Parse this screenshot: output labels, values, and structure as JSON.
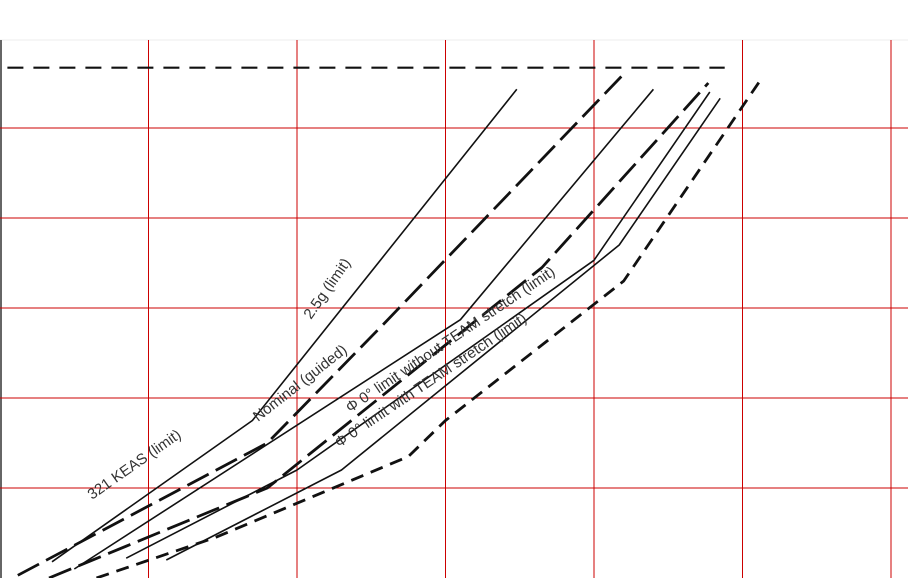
{
  "colors": {
    "grid": "#cc0000",
    "line": "#111111",
    "label": "#333333",
    "background": "#ffffff"
  },
  "chart_data": {
    "type": "line",
    "title": "",
    "xlabel": "",
    "ylabel": "",
    "grid": true,
    "legend": "none",
    "xlim": [
      0,
      6
    ],
    "ylim": [
      0,
      6
    ],
    "x_gridlines": [
      1,
      2,
      3,
      4,
      5,
      6
    ],
    "y_gridlines": [
      1,
      2,
      3,
      4,
      5
    ],
    "bounds": [
      {
        "style": "dashed",
        "values": [
          [
            0.05,
            5.67
          ],
          [
            4.88,
            5.67
          ]
        ]
      },
      {
        "style": "dashed",
        "values": [
          [
            0.05,
            -0.03
          ],
          [
            4.88,
            -0.03
          ]
        ]
      }
    ],
    "series": [
      {
        "name": "321 KEAS (limit)",
        "style": "long-dash",
        "values": [
          [
            0.12,
            0.03
          ],
          [
            1.8,
            1.5
          ],
          [
            2.6,
            2.85
          ],
          [
            4.2,
            5.6
          ]
        ]
      },
      {
        "name": "2.5g (limit)",
        "style": "solid",
        "values": [
          [
            0.35,
            0.18
          ],
          [
            1.7,
            1.75
          ],
          [
            3.48,
            5.43
          ]
        ]
      },
      {
        "name": "Nominal (guided)",
        "style": "solid",
        "values": [
          [
            0.5,
            0.1
          ],
          [
            3.1,
            2.87
          ],
          [
            4.4,
            5.43
          ]
        ]
      },
      {
        "name": "Φ 0° limit without TEAM stretch (limit)",
        "style": "long-dash",
        "values": [
          [
            0.33,
            0.0
          ],
          [
            1.8,
            1.0
          ],
          [
            3.65,
            3.45
          ],
          [
            4.77,
            5.5
          ]
        ]
      },
      {
        "name": "Φ 0° limit with TEAM stretch (limit)",
        "style": "solid",
        "values": [
          [
            0.85,
            0.22
          ],
          [
            2.0,
            1.2
          ],
          [
            4.0,
            3.53
          ],
          [
            4.78,
            5.4
          ]
        ]
      },
      {
        "name": "",
        "style": "solid",
        "values": [
          [
            1.12,
            0.2
          ],
          [
            2.3,
            1.2
          ],
          [
            4.17,
            3.7
          ],
          [
            4.85,
            5.33
          ]
        ]
      },
      {
        "name": "",
        "style": "short-dash",
        "values": [
          [
            0.65,
            0.0
          ],
          [
            1.45,
            0.45
          ],
          [
            2.75,
            1.35
          ],
          [
            3.0,
            1.75
          ],
          [
            4.2,
            3.3
          ],
          [
            5.12,
            5.53
          ]
        ]
      }
    ],
    "annotations": [
      "321 KEAS (limit)",
      "2.5g (limit)",
      "Nominal (guided)",
      "Φ 0° limit without TEAM stretch (limit)",
      "Φ 0° limit with TEAM stretch (limit)"
    ]
  }
}
